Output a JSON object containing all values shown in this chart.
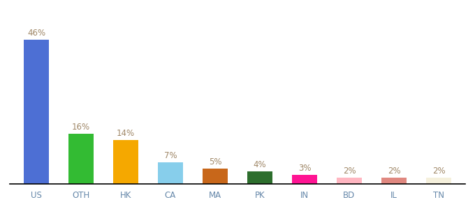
{
  "categories": [
    "US",
    "OTH",
    "HK",
    "CA",
    "MA",
    "PK",
    "IN",
    "BD",
    "IL",
    "TN"
  ],
  "values": [
    46,
    16,
    14,
    7,
    5,
    4,
    3,
    2,
    2,
    2
  ],
  "bar_colors": [
    "#4d6fd4",
    "#33bb33",
    "#f5a800",
    "#87ceeb",
    "#c8671a",
    "#2d6e2d",
    "#ff1493",
    "#ffb6c1",
    "#e08880",
    "#f5f0dc"
  ],
  "labels": [
    "46%",
    "16%",
    "14%",
    "7%",
    "5%",
    "4%",
    "3%",
    "2%",
    "2%",
    "2%"
  ],
  "background_color": "#ffffff",
  "label_color": "#a08868",
  "ylim": [
    0,
    54
  ],
  "label_fontsize": 8.5,
  "tick_fontsize": 8.5,
  "tick_color": "#6688aa",
  "bar_width": 0.55
}
